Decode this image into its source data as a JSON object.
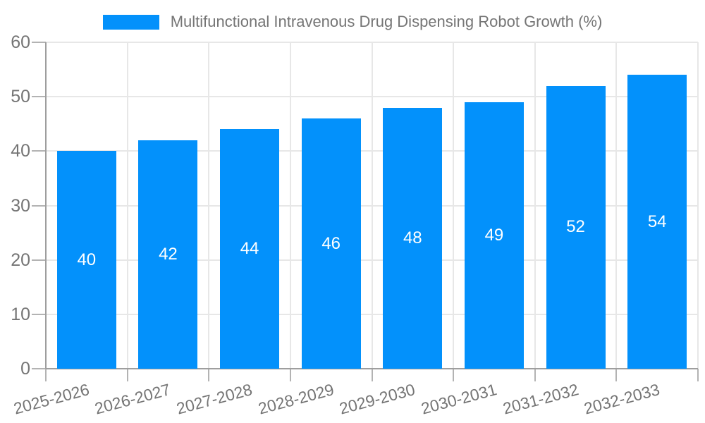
{
  "accent": "#0391fb",
  "colors": {
    "axis_line": "#9e9e9e",
    "gridline": "#e7e7e7",
    "tick": "#b3b3b3",
    "axis_text": "#757575",
    "bar_label_text": "#ffffff",
    "background": "#ffffff"
  },
  "legend": {
    "swatch_icon": "legend-color-swatch",
    "label": "Multifunctional Intravenous Drug Dispensing Robot Growth (%)"
  },
  "chart_data": {
    "type": "bar",
    "title": "Multifunctional Intravenous Drug Dispensing Robot Growth (%)",
    "categories": [
      "2025-2026",
      "2026-2027",
      "2027-2028",
      "2028-2029",
      "2029-2030",
      "2030-2031",
      "2031-2032",
      "2032-2033"
    ],
    "values": [
      40,
      42,
      44,
      46,
      48,
      49,
      52,
      54
    ],
    "xlabel": "",
    "ylabel": "",
    "ylim": [
      0,
      60
    ],
    "yticks": [
      0,
      10,
      20,
      30,
      40,
      50,
      60
    ],
    "grid": true,
    "legend_position": "top-center",
    "bar_color": "#0391fb",
    "data_labels_position": "inside-center",
    "x_label_rotation_deg": -15
  }
}
